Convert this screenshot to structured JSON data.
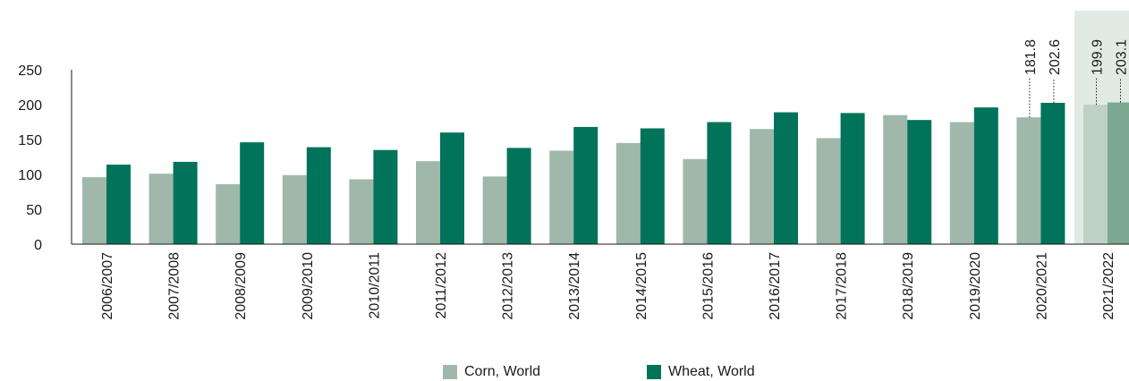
{
  "chart_data": {
    "type": "bar",
    "title": "",
    "xlabel": "",
    "ylabel": "",
    "ylim": [
      0,
      250
    ],
    "yticks": [
      0,
      50,
      100,
      150,
      200,
      250
    ],
    "grid": false,
    "legend_position": "bottom",
    "categories": [
      "2006/2007",
      "2007/2008",
      "2008/2009",
      "2009/2010",
      "2010/2011",
      "2011/2012",
      "2012/2013",
      "2013/2014",
      "2014/2015",
      "2015/2016",
      "2016/2017",
      "2017/2018",
      "2018/2019",
      "2019/2020",
      "2020/2021",
      "2021/2022"
    ],
    "highlighted_category": "2021/2022",
    "series": [
      {
        "name": "Corn, World",
        "color": "#9fb8a9",
        "values": [
          96,
          101,
          86,
          99,
          93,
          119,
          97,
          134,
          145,
          122,
          165,
          152,
          185,
          175,
          181.8,
          199.9
        ],
        "labels": [
          null,
          null,
          null,
          null,
          null,
          null,
          null,
          null,
          null,
          null,
          null,
          null,
          null,
          null,
          "181.8",
          "199.9"
        ]
      },
      {
        "name": "Wheat, World",
        "color": "#00735a",
        "values": [
          114,
          118,
          146,
          139,
          135,
          160,
          138,
          168,
          166,
          175,
          189,
          188,
          178,
          196,
          202.6,
          203.1
        ],
        "labels": [
          null,
          null,
          null,
          null,
          null,
          null,
          null,
          null,
          null,
          null,
          null,
          null,
          null,
          null,
          "202.6",
          "203.1"
        ]
      }
    ],
    "projection_colors": {
      "band": "#e1ebe4",
      "corn": "#bfd0c4",
      "wheat": "#7da891"
    }
  }
}
